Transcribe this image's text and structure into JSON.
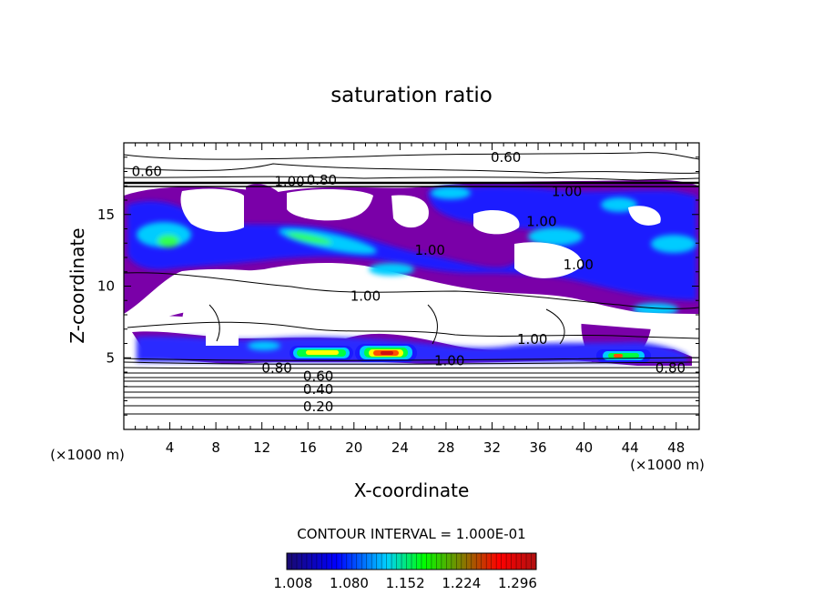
{
  "chart_data": {
    "type": "heatmap",
    "title": "saturation ratio",
    "xlabel": "X-coordinate",
    "ylabel": "Z-coordinate",
    "x_unit": "(×1000 m)",
    "z_unit": "(×1000 m)",
    "xlim": [
      0,
      50
    ],
    "ylim": [
      0,
      20
    ],
    "x_ticks": [
      "4",
      "8",
      "12",
      "16",
      "20",
      "24",
      "28",
      "32",
      "36",
      "40",
      "44",
      "48"
    ],
    "x_tick_values": [
      4,
      8,
      12,
      16,
      20,
      24,
      28,
      32,
      36,
      40,
      44,
      48
    ],
    "y_ticks": [
      "5",
      "10",
      "15"
    ],
    "y_tick_values": [
      5,
      10,
      15
    ],
    "contour_interval_text": "CONTOUR INTERVAL = 1.000E-01",
    "contour_labels": [
      {
        "text": "0.60",
        "x": 2.0,
        "z": 18.0
      },
      {
        "text": "0.60",
        "x": 33.2,
        "z": 19.0
      },
      {
        "text": "0.80",
        "x": 17.2,
        "z": 17.4
      },
      {
        "text": "1.00",
        "x": 14.4,
        "z": 17.3
      },
      {
        "text": "1.00",
        "x": 38.5,
        "z": 16.6
      },
      {
        "text": "1.00",
        "x": 36.3,
        "z": 14.5
      },
      {
        "text": "1.00",
        "x": 26.6,
        "z": 12.5
      },
      {
        "text": "1.00",
        "x": 39.5,
        "z": 11.5
      },
      {
        "text": "1.00",
        "x": 21.0,
        "z": 9.3
      },
      {
        "text": "1.00",
        "x": 35.5,
        "z": 6.3
      },
      {
        "text": "1.00",
        "x": 28.3,
        "z": 4.8
      },
      {
        "text": "0.80",
        "x": 13.3,
        "z": 4.3
      },
      {
        "text": "0.80",
        "x": 47.5,
        "z": 4.3
      },
      {
        "text": "0.60",
        "x": 16.9,
        "z": 3.7
      },
      {
        "text": "0.40",
        "x": 16.9,
        "z": 2.8
      },
      {
        "text": "0.20",
        "x": 16.9,
        "z": 1.6
      }
    ],
    "colorbar": {
      "range": [
        1.0,
        1.32
      ],
      "tick_labels": [
        "1.008",
        "1.080",
        "1.152",
        "1.224",
        "1.296"
      ],
      "colors": [
        "#1a0a6e",
        "#0000ff",
        "#00d0ff",
        "#00ff00",
        "#ff0000",
        "#b01010"
      ]
    },
    "supersaturated_regions": [
      {
        "x": [
          1.5,
          5.5
        ],
        "z": [
          13.5,
          17.0
        ],
        "peak": 1.12
      },
      {
        "x": [
          0,
          4
        ],
        "z": [
          12.5,
          14.5
        ],
        "peak": 1.15
      },
      {
        "x": [
          6,
          13
        ],
        "z": [
          11,
          13.5
        ],
        "peak": 1.08
      },
      {
        "x": [
          14,
          22
        ],
        "z": [
          12.5,
          14
        ],
        "peak": 1.16
      },
      {
        "x": [
          20,
          30
        ],
        "z": [
          10.5,
          12.5
        ],
        "peak": 1.09
      },
      {
        "x": [
          27,
          34
        ],
        "z": [
          15,
          17
        ],
        "peak": 1.13
      },
      {
        "x": [
          38,
          50
        ],
        "z": [
          12,
          17
        ],
        "peak": 1.15
      },
      {
        "x": [
          14.5,
          19.5
        ],
        "z": [
          5.0,
          6.0
        ],
        "peak": 1.22
      },
      {
        "x": [
          20,
          24.5
        ],
        "z": [
          4.9,
          6.0
        ],
        "peak": 1.29
      },
      {
        "x": [
          42,
          45
        ],
        "z": [
          4.8,
          5.6
        ],
        "peak": 1.2
      }
    ]
  }
}
